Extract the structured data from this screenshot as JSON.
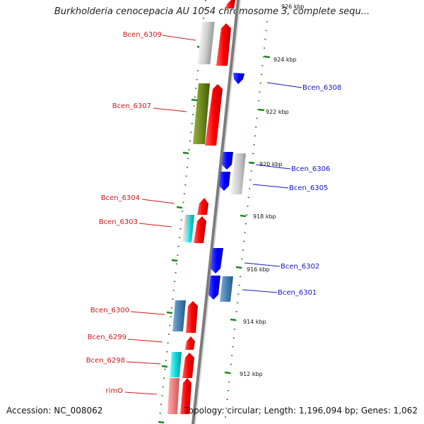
{
  "title": "Burkholderia cenocepacia AU 1054 chromosome 3, complete sequ...",
  "footer": {
    "accession": "Accession: NC_008062",
    "topology": "Topology: circular; Length: 1,196,094 bp; Genes: 1,062"
  },
  "scale_labels": [
    "926 kbp",
    "924 kbp",
    "922 kbp",
    "920 kbp",
    "918 kbp",
    "916 kbp",
    "914 kbp",
    "912 kbp"
  ],
  "genes_left": [
    "Bcen_6309",
    "Bcen_6307",
    "Bcen_6304",
    "Bcen_6303",
    "Bcen_6300",
    "Bcen_6299",
    "Bcen_6298",
    "rimO"
  ],
  "genes_right": [
    "Bcen_6308",
    "Bcen_6306",
    "Bcen_6305",
    "Bcen_6302",
    "Bcen_6301"
  ],
  "colors": {
    "forward_cds": "#ff0000",
    "reverse_cds": "#0000ff",
    "backbone": "#888888",
    "tick": "#1a8a1a",
    "label_left": "#d01818",
    "label_right": "#1414c8"
  }
}
